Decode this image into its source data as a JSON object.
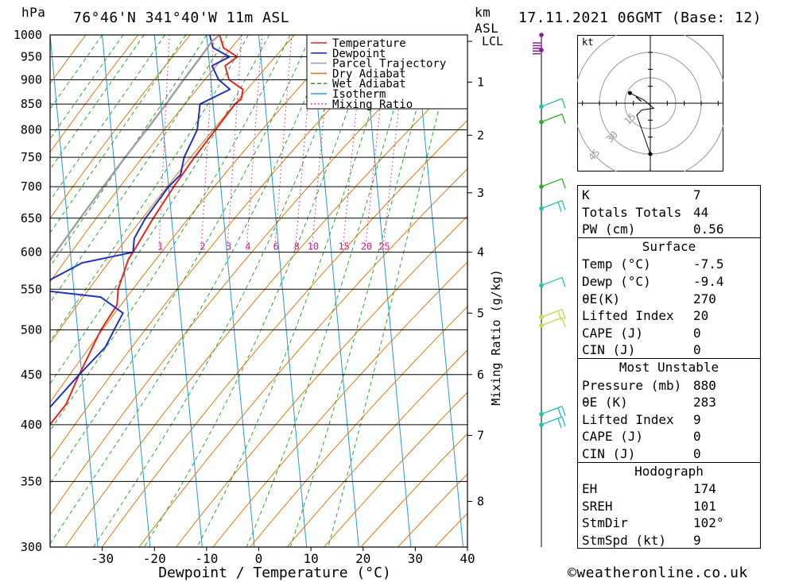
{
  "header": {
    "left_unit": "hPa",
    "location": "76°46'N  341°40'W  11m  ASL",
    "km_label": "km",
    "asl_label": "ASL",
    "datetime": "17.11.2021  06GMT  (Base: 12)"
  },
  "chart_data": {
    "type": "line",
    "title": "Skew-T log-P diagram",
    "xlabel": "Dewpoint / Temperature (°C)",
    "ylabel": "hPa",
    "xlim": [
      -40,
      40
    ],
    "ylim": [
      1000,
      300
    ],
    "x_ticks": [
      "-30",
      "-20",
      "-10",
      "0",
      "10",
      "20",
      "30",
      "40"
    ],
    "x_tick_values": [
      -30,
      -20,
      -10,
      0,
      10,
      20,
      30,
      40
    ],
    "pressure_levels": [
      300,
      350,
      400,
      450,
      500,
      550,
      600,
      650,
      700,
      750,
      800,
      850,
      900,
      950,
      1000
    ],
    "pressure_labels": [
      "300",
      "350",
      "400",
      "450",
      "500",
      "550",
      "600",
      "650",
      "700",
      "750",
      "800",
      "850",
      "900",
      "950",
      "1000"
    ],
    "km_ticks": [
      {
        "label": "1",
        "p": 895
      },
      {
        "label": "2",
        "p": 790
      },
      {
        "label": "3",
        "p": 690
      },
      {
        "label": "4",
        "p": 600
      },
      {
        "label": "5",
        "p": 520
      },
      {
        "label": "6",
        "p": 450
      },
      {
        "label": "7",
        "p": 390
      },
      {
        "label": "8",
        "p": 334
      }
    ],
    "lcl": {
      "label": "LCL",
      "p": 985
    },
    "mixing_ratio_axis_label": "Mixing Ratio (g/kg)",
    "mixing_ratio_labels": [
      "1",
      "2",
      "3",
      "4",
      "6",
      "8",
      "10",
      "15",
      "20",
      "25"
    ],
    "mixing_ratio_values": [
      1,
      2,
      3,
      4,
      6,
      8,
      10,
      15,
      20,
      25
    ],
    "skew_per_decade": 115,
    "legend": [
      {
        "name": "Temperature",
        "color": "#e8261c",
        "style": "solid"
      },
      {
        "name": "Dewpoint",
        "color": "#1c33c8",
        "style": "solid"
      },
      {
        "name": "Parcel Trajectory",
        "color": "#a0a0a0",
        "style": "solid"
      },
      {
        "name": "Dry Adiabat",
        "color": "#e07a10",
        "style": "solid"
      },
      {
        "name": "Wet Adiabat",
        "color": "#2ca82c",
        "style": "dashed"
      },
      {
        "name": "Isotherm",
        "color": "#1e9be0",
        "style": "solid"
      },
      {
        "name": "Mixing Ratio",
        "color": "#d81c8a",
        "style": "dotted"
      }
    ],
    "series": [
      {
        "name": "Temperature",
        "color": "#e8261c",
        "points": [
          [
            1000,
            -7.5
          ],
          [
            970,
            -7.0
          ],
          [
            950,
            -4.5
          ],
          [
            930,
            -7.0
          ],
          [
            900,
            -6.5
          ],
          [
            880,
            -4.0
          ],
          [
            860,
            -4.5
          ],
          [
            850,
            -5.8
          ],
          [
            800,
            -10.0
          ],
          [
            750,
            -14.5
          ],
          [
            700,
            -19.0
          ],
          [
            650,
            -23.5
          ],
          [
            600,
            -28.0
          ],
          [
            590,
            -29.0
          ],
          [
            550,
            -31.5
          ],
          [
            530,
            -32.0
          ],
          [
            500,
            -35.5
          ],
          [
            450,
            -40.5
          ],
          [
            420,
            -43.5
          ],
          [
            400,
            -47.0
          ],
          [
            350,
            -55.0
          ],
          [
            320,
            -57.5
          ],
          [
            300,
            -59.5
          ]
        ]
      },
      {
        "name": "Dewpoint",
        "color": "#1c33c8",
        "points": [
          [
            1000,
            -9.4
          ],
          [
            970,
            -9.0
          ],
          [
            950,
            -6.0
          ],
          [
            930,
            -9.5
          ],
          [
            900,
            -8.5
          ],
          [
            880,
            -6.5
          ],
          [
            850,
            -12.5
          ],
          [
            800,
            -13.5
          ],
          [
            750,
            -16.5
          ],
          [
            720,
            -17.5
          ],
          [
            700,
            -20.0
          ],
          [
            650,
            -25.0
          ],
          [
            620,
            -27.5
          ],
          [
            600,
            -28.0
          ],
          [
            585,
            -38.0
          ],
          [
            560,
            -45.0
          ],
          [
            550,
            -48.0
          ],
          [
            540,
            -35.0
          ],
          [
            520,
            -31.0
          ],
          [
            500,
            -33.0
          ],
          [
            480,
            -35.0
          ],
          [
            450,
            -40.5
          ],
          [
            400,
            -50.0
          ],
          [
            350,
            -59.0
          ],
          [
            340,
            -63.0
          ],
          [
            320,
            -69.0
          ],
          [
            300,
            -68.0
          ]
        ]
      },
      {
        "name": "Parcel Trajectory",
        "color": "#a0a0a0",
        "points": [
          [
            1000,
            -7.5
          ],
          [
            985,
            -9.1
          ],
          [
            950,
            -11.5
          ],
          [
            900,
            -15.2
          ],
          [
            850,
            -19.0
          ],
          [
            800,
            -23.2
          ],
          [
            750,
            -27.8
          ],
          [
            700,
            -32.5
          ],
          [
            650,
            -37.5
          ],
          [
            600,
            -42.8
          ],
          [
            550,
            -48.5
          ],
          [
            500,
            -54.5
          ],
          [
            450,
            -61.0
          ],
          [
            400,
            -68.0
          ],
          [
            350,
            -75.5
          ],
          [
            300,
            -84.0
          ]
        ]
      }
    ]
  },
  "hodograph": {
    "unit_label": "kt",
    "ring_labels": [
      "15",
      "30",
      "45"
    ],
    "ring_values": [
      15,
      30,
      45
    ],
    "points": [
      {
        "u": 0,
        "v": -30
      },
      {
        "u": -8,
        "v": -7
      },
      {
        "u": -5,
        "v": -4
      },
      {
        "u": 2,
        "v": -3
      },
      {
        "u": -4,
        "v": 2
      },
      {
        "u": -12,
        "v": 6
      }
    ],
    "storm_motion": {
      "dir_deg": 102,
      "speed_kt": 9
    }
  },
  "wind_barbs": [
    {
      "p": 400,
      "color": "#22c0b0",
      "barbs": 2
    },
    {
      "p": 410,
      "color": "#22c0b0",
      "barbs": 2
    },
    {
      "p": 505,
      "color": "#c6d84a",
      "barbs": 1
    },
    {
      "p": 515,
      "color": "#c6d84a",
      "barbs": 2
    },
    {
      "p": 555,
      "color": "#22c0b0",
      "barbs": 1
    },
    {
      "p": 665,
      "color": "#22c0b0",
      "barbs": 2
    },
    {
      "p": 700,
      "color": "#22b022",
      "barbs": 1
    },
    {
      "p": 815,
      "color": "#22b022",
      "barbs": 1
    },
    {
      "p": 845,
      "color": "#22c0b0",
      "barbs": 1
    },
    {
      "p": 965,
      "color": "#8a1a9a",
      "barbs": 5
    },
    {
      "p": 1000,
      "color": "#8a1a9a",
      "barbs": 0
    }
  ],
  "indices": {
    "top": [
      {
        "label": "K",
        "value": "7"
      },
      {
        "label": "Totals Totals",
        "value": "44"
      },
      {
        "label": "PW (cm)",
        "value": "0.56"
      }
    ],
    "surface": {
      "title": "Surface",
      "rows": [
        {
          "label": "Temp (°C)",
          "value": "-7.5"
        },
        {
          "label": "Dewp (°C)",
          "value": "-9.4"
        },
        {
          "label": "θE(K)",
          "value": "270"
        },
        {
          "label": "Lifted Index",
          "value": "20"
        },
        {
          "label": "CAPE (J)",
          "value": "0"
        },
        {
          "label": "CIN (J)",
          "value": "0"
        }
      ]
    },
    "most_unstable": {
      "title": "Most Unstable",
      "rows": [
        {
          "label": "Pressure (mb)",
          "value": "880"
        },
        {
          "label": "θE (K)",
          "value": "283"
        },
        {
          "label": "Lifted Index",
          "value": "9"
        },
        {
          "label": "CAPE (J)",
          "value": "0"
        },
        {
          "label": "CIN (J)",
          "value": "0"
        }
      ]
    },
    "hodograph_params": {
      "title": "Hodograph",
      "rows": [
        {
          "label": "EH",
          "value": "174"
        },
        {
          "label": "SREH",
          "value": "101"
        },
        {
          "label": "StmDir",
          "value": "102°"
        },
        {
          "label": "StmSpd (kt)",
          "value": "9"
        }
      ]
    }
  },
  "footer": {
    "copyright": "©weatheronline.co.uk"
  }
}
